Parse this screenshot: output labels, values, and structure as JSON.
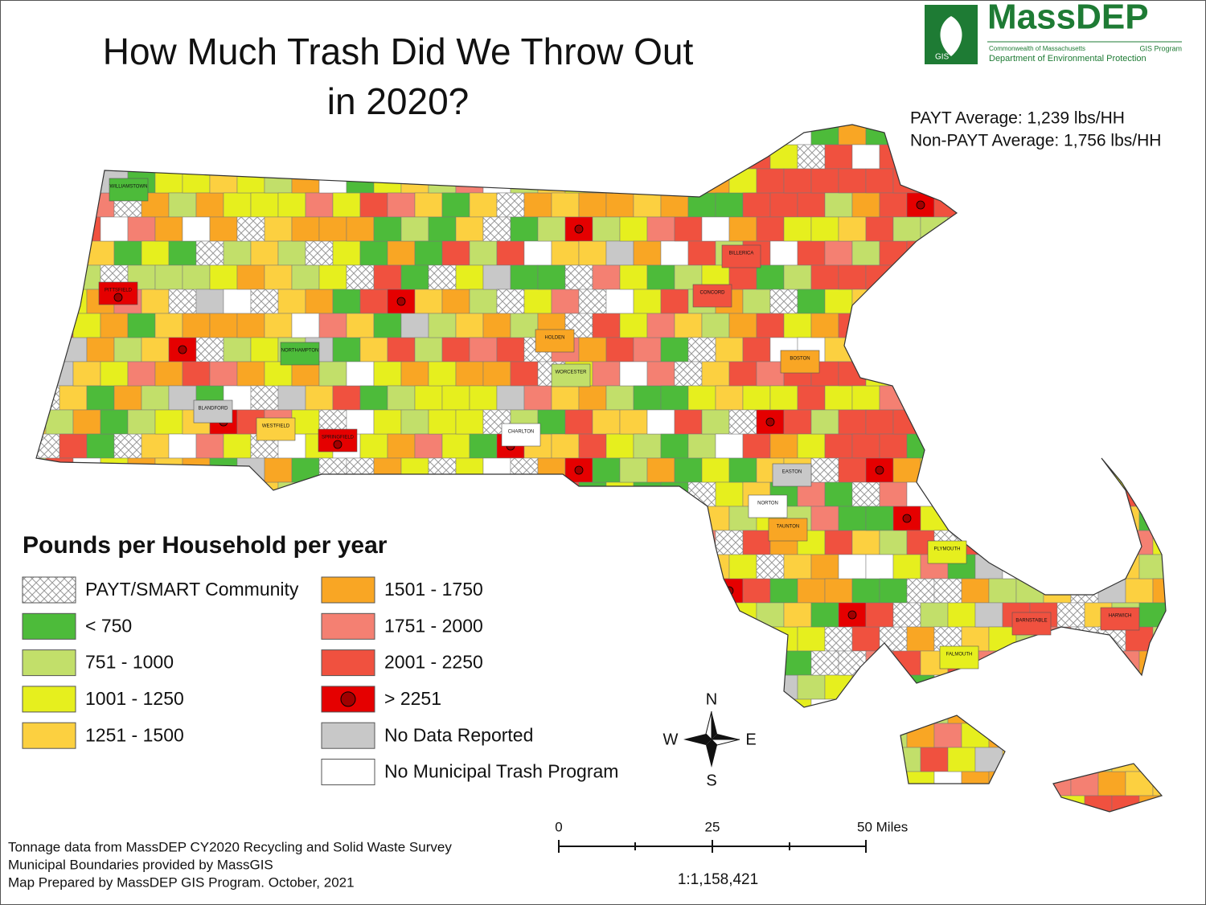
{
  "header": {
    "title_lines": [
      "How Much Trash Did We Throw Out",
      "in 2020?"
    ]
  },
  "logo": {
    "name": "MassDEP",
    "badge": "GIS",
    "line1_left": "Commonwealth of Massachusetts",
    "line1_right": "GIS Program",
    "line2": "Department of Environmental Protection"
  },
  "averages": [
    "PAYT Average: 1,239 lbs/HH",
    "Non-PAYT Average: 1,756 lbs/HH"
  ],
  "legend": {
    "title": "Pounds per Household per year",
    "items": [
      {
        "label": "PAYT/SMART Community",
        "color": "#ffffff",
        "pattern": "crosshatch"
      },
      {
        "label": "< 750",
        "color": "#4dbb3a"
      },
      {
        "label": "751 - 1000",
        "color": "#c2df6a"
      },
      {
        "label": "1001 - 1250",
        "color": "#e6ef1e"
      },
      {
        "label": "1251 - 1500",
        "color": "#fcd040"
      },
      {
        "label": "1501 - 1750",
        "color": "#f9a624"
      },
      {
        "label": "1751 - 2000",
        "color": "#f48072"
      },
      {
        "label": "2001 - 2250",
        "color": "#f0513f"
      },
      {
        "label": "> 2251",
        "color": "#e50000",
        "marker": "dot"
      },
      {
        "label": "No Data Reported",
        "color": "#c8c8c8"
      },
      {
        "label": "No Municipal Trash Program",
        "color": "#ffffff"
      }
    ]
  },
  "towns": [
    {
      "name": "WILLIAMSTOWN",
      "color": "#4dbb3a"
    },
    {
      "name": "PITTSFIELD",
      "color": "#e50000"
    },
    {
      "name": "NORTHAMPTON",
      "color": "#4dbb3a"
    },
    {
      "name": "SPRINGFIELD",
      "color": "#e50000"
    },
    {
      "name": "WESTFIELD",
      "color": "#fcd040"
    },
    {
      "name": "BLANDFORD",
      "color": "#c8c8c8"
    },
    {
      "name": "HOLDEN",
      "color": "#f9a624"
    },
    {
      "name": "WORCESTER",
      "color": "#c2df6a"
    },
    {
      "name": "CHARLTON",
      "color": "#ffffff"
    },
    {
      "name": "CONCORD",
      "color": "#f0513f"
    },
    {
      "name": "BILLERICA",
      "color": "#f0513f"
    },
    {
      "name": "BOSTON",
      "color": "#f9a624"
    },
    {
      "name": "EASTON",
      "color": "#c8c8c8"
    },
    {
      "name": "NORTON",
      "color": "#ffffff"
    },
    {
      "name": "TAUNTON",
      "color": "#f9a624"
    },
    {
      "name": "PLYMOUTH",
      "color": "#e6ef1e"
    },
    {
      "name": "FALMOUTH",
      "color": "#e6ef1e"
    },
    {
      "name": "BARNSTABLE",
      "color": "#f0513f"
    },
    {
      "name": "HARWICH",
      "color": "#f0513f"
    }
  ],
  "compass": {
    "n": "N",
    "s": "S",
    "e": "E",
    "w": "W"
  },
  "scale_bar": {
    "labels": [
      "0",
      "25",
      "50 Miles"
    ],
    "ratio": "1:1,158,421"
  },
  "notes": [
    "Tonnage data from MassDEP CY2020 Recycling and Solid Waste Survey",
    "Municipal Boundaries provided by MassGIS",
    "Map Prepared by MassDEP GIS Program. October, 2021"
  ]
}
